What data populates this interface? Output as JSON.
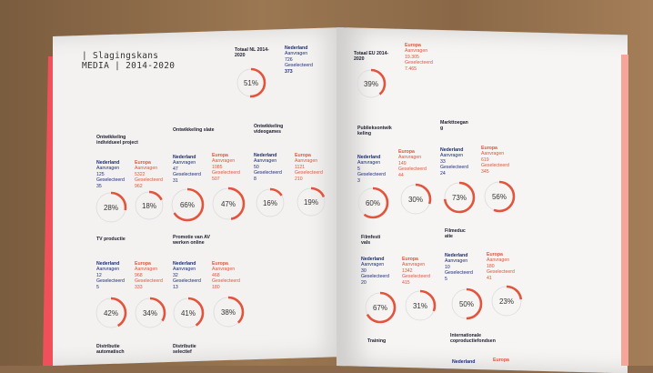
{
  "title": {
    "line1": "| Slagingskans",
    "line2": "MEDIA | 2014-2020"
  },
  "colors": {
    "nl": "#1b2b7a",
    "eu": "#e2543c",
    "ring_track": "#d8d8dc"
  },
  "totals": {
    "nl": {
      "label": "Totaal NL 2014-2020",
      "pct": "51%",
      "value": 0.51,
      "country": "Nederland",
      "aanvragen_label": "Aanvragen",
      "aanvragen": "726",
      "gesel_label": "Geselecteerd",
      "geselecteerd": "373"
    },
    "eu": {
      "label": "Totaal EU 2014-2020",
      "pct": "39%",
      "value": 0.39,
      "country": "Europa",
      "aanvragen_label": "Aanvragen",
      "aanvragen": "19.305",
      "gesel_label": "Geselecteerd",
      "geselecteerd": "7.465"
    }
  },
  "categories": [
    {
      "name": "Ontwikkeling individueel project",
      "nl": {
        "country": "Nederland",
        "aanvragen_label": "Aanvragen",
        "aanvragen": "125",
        "gesel_label": "Geselecteerd",
        "geselecteerd": "35",
        "pct": "28%",
        "value": 0.28
      },
      "eu": {
        "country": "Europa",
        "aanvragen_label": "Aanvragen",
        "aanvragen": "5322",
        "gesel_label": "Geselecteerd",
        "geselecteerd": "962",
        "pct": "18%",
        "value": 0.18
      }
    },
    {
      "name": "Ontwikkeling slate",
      "nl": {
        "country": "Nederland",
        "aanvragen_label": "Aanvragen",
        "aanvragen": "47",
        "gesel_label": "Geselecteerd",
        "geselecteerd": "31",
        "pct": "66%",
        "value": 0.66
      },
      "eu": {
        "country": "Europa",
        "aanvragen_label": "Aanvragen",
        "aanvragen": "1085",
        "gesel_label": "Geselecteerd",
        "geselecteerd": "507",
        "pct": "47%",
        "value": 0.47
      }
    },
    {
      "name": "Ontwikkeling videogames",
      "nl": {
        "country": "Nederland",
        "aanvragen_label": "Aanvragen",
        "aanvragen": "50",
        "gesel_label": "Geselecteerd",
        "geselecteerd": "8",
        "pct": "16%",
        "value": 0.16
      },
      "eu": {
        "country": "Europa",
        "aanvragen_label": "Aanvragen",
        "aanvragen": "1121",
        "gesel_label": "Geselecteerd",
        "geselecteerd": "210",
        "pct": "19%",
        "value": 0.19
      }
    },
    {
      "name": "TV productie",
      "nl": {
        "country": "Nederland",
        "aanvragen_label": "Aanvragen",
        "aanvragen": "12",
        "gesel_label": "Geselecteerd",
        "geselecteerd": "5",
        "pct": "42%",
        "value": 0.42
      },
      "eu": {
        "country": "Europa",
        "aanvragen_label": "Aanvragen",
        "aanvragen": "968",
        "gesel_label": "Geselecteerd",
        "geselecteerd": "333",
        "pct": "34%",
        "value": 0.34
      }
    },
    {
      "name": "Promotie van AV werken online",
      "nl": {
        "country": "Nederland",
        "aanvragen_label": "Aanvragen",
        "aanvragen": "32",
        "gesel_label": "Geselecteerd",
        "geselecteerd": "13",
        "pct": "41%",
        "value": 0.41
      },
      "eu": {
        "country": "Europa",
        "aanvragen_label": "Aanvragen",
        "aanvragen": "468",
        "gesel_label": "Geselecteerd",
        "geselecteerd": "180",
        "pct": "38%",
        "value": 0.38
      }
    },
    {
      "name": "Publieksontwikkeling",
      "nl": {
        "country": "Nederland",
        "aanvragen_label": "Aanvragen",
        "aanvragen": "5",
        "gesel_label": "Geselecteerd",
        "geselecteerd": "3",
        "pct": "60%",
        "value": 0.6
      },
      "eu": {
        "country": "Europa",
        "aanvragen_label": "Aanvragen",
        "aanvragen": "149",
        "gesel_label": "Geselecteerd",
        "geselecteerd": "44",
        "pct": "30%",
        "value": 0.3
      }
    },
    {
      "name": "Markttoegang",
      "nl": {
        "country": "Nederland",
        "aanvragen_label": "Aanvragen",
        "aanvragen": "33",
        "gesel_label": "Geselecteerd",
        "geselecteerd": "24",
        "pct": "73%",
        "value": 0.73
      },
      "eu": {
        "country": "Europa",
        "aanvragen_label": "Aanvragen",
        "aanvragen": "619",
        "gesel_label": "Geselecteerd",
        "geselecteerd": "345",
        "pct": "56%",
        "value": 0.56
      }
    },
    {
      "name": "Filmfestivals",
      "nl": {
        "country": "Nederland",
        "aanvragen_label": "Aanvragen",
        "aanvragen": "30",
        "gesel_label": "Geselecteerd",
        "geselecteerd": "20",
        "pct": "67%",
        "value": 0.67
      },
      "eu": {
        "country": "Europa",
        "aanvragen_label": "Aanvragen",
        "aanvragen": "1342",
        "gesel_label": "Geselecteerd",
        "geselecteerd": "415",
        "pct": "31%",
        "value": 0.31
      }
    },
    {
      "name": "Filmeducatie",
      "nl": {
        "country": "Nederland",
        "aanvragen_label": "Aanvragen",
        "aanvragen": "10",
        "gesel_label": "Geselecteerd",
        "geselecteerd": "5",
        "pct": "50%",
        "value": 0.5
      },
      "eu": {
        "country": "Europa",
        "aanvragen_label": "Aanvragen",
        "aanvragen": "180",
        "gesel_label": "Geselecteerd",
        "geselecteerd": "41",
        "pct": "23%",
        "value": 0.23
      }
    }
  ],
  "bottom_labels": {
    "distributie_auto": "Distributie automatisch",
    "distributie_sel": "Distributie selectief",
    "training": "Training",
    "internationaal": "Internationale coproductiefondsen",
    "nederland": "Nederland",
    "europa": "Europa"
  }
}
